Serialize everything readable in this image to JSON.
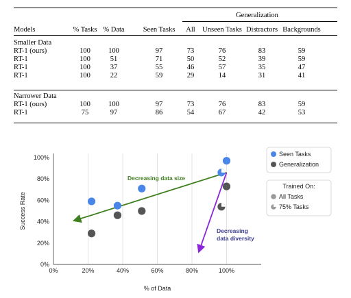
{
  "table": {
    "group_header": "Generalization",
    "columns": [
      "Models",
      "% Tasks",
      "% Data",
      "Seen Tasks",
      "All",
      "Unseen Tasks",
      "Distractors",
      "Backgrounds"
    ],
    "sections": [
      {
        "title": "Smaller Data",
        "rows": [
          [
            "RT-1 (ours)",
            "100",
            "100",
            "97",
            "73",
            "76",
            "83",
            "59"
          ],
          [
            "RT-1",
            "100",
            "51",
            "71",
            "50",
            "52",
            "39",
            "59"
          ],
          [
            "RT-1",
            "100",
            "37",
            "55",
            "46",
            "57",
            "35",
            "47"
          ],
          [
            "RT-1",
            "100",
            "22",
            "59",
            "29",
            "14",
            "31",
            "41"
          ]
        ]
      },
      {
        "title": "Narrower Data",
        "rows": [
          [
            "RT-1 (ours)",
            "100",
            "100",
            "97",
            "73",
            "76",
            "83",
            "59"
          ],
          [
            "RT-1",
            "75",
            "97",
            "86",
            "54",
            "67",
            "42",
            "53"
          ]
        ]
      }
    ]
  },
  "chart_data": {
    "type": "scatter",
    "xlabel": "% of Data",
    "ylabel": "Success Rate",
    "xlim": [
      0,
      120
    ],
    "ylim": [
      0,
      100
    ],
    "x_ticks": [
      0,
      20,
      40,
      60,
      80,
      100
    ],
    "x_tick_labels": [
      "0%",
      "20%",
      "40%",
      "60%",
      "80%",
      "100%"
    ],
    "y_ticks": [
      0,
      20,
      40,
      60,
      80,
      100
    ],
    "y_tick_labels": [
      "0%",
      "20%",
      "40%",
      "60%",
      "80%",
      "100%"
    ],
    "grid": "vertical",
    "colors": {
      "seen": "#4a86e8",
      "generalization": "#555555",
      "size_arrow": "#3f7f1f",
      "diversity_arrow": "#8b26d9"
    },
    "series": [
      {
        "name": "Seen Tasks",
        "points": [
          {
            "x": 22,
            "y": 59,
            "tasks": "All Tasks"
          },
          {
            "x": 37,
            "y": 55,
            "tasks": "All Tasks"
          },
          {
            "x": 51,
            "y": 71,
            "tasks": "All Tasks"
          },
          {
            "x": 100,
            "y": 97,
            "tasks": "All Tasks"
          },
          {
            "x": 97,
            "y": 86,
            "tasks": "75% Tasks"
          }
        ]
      },
      {
        "name": "Generalization",
        "points": [
          {
            "x": 22,
            "y": 29,
            "tasks": "All Tasks"
          },
          {
            "x": 37,
            "y": 46,
            "tasks": "All Tasks"
          },
          {
            "x": 51,
            "y": 50,
            "tasks": "All Tasks"
          },
          {
            "x": 100,
            "y": 73,
            "tasks": "All Tasks"
          },
          {
            "x": 97,
            "y": 54,
            "tasks": "75% Tasks"
          }
        ]
      }
    ],
    "annotations": [
      {
        "text": "Decreasing data size",
        "from": [
          100,
          86
        ],
        "to": [
          12,
          41
        ]
      },
      {
        "text_lines": [
          "Decreasing",
          "data diversity"
        ],
        "from": [
          100,
          86
        ],
        "to": [
          84,
          12
        ]
      }
    ],
    "legend_series": {
      "placement": "right",
      "entries": [
        "Seen Tasks",
        "Generalization"
      ]
    },
    "legend_tasks": {
      "placement": "right",
      "title": "Trained On:",
      "entries": [
        "All Tasks",
        "75% Tasks"
      ]
    }
  }
}
